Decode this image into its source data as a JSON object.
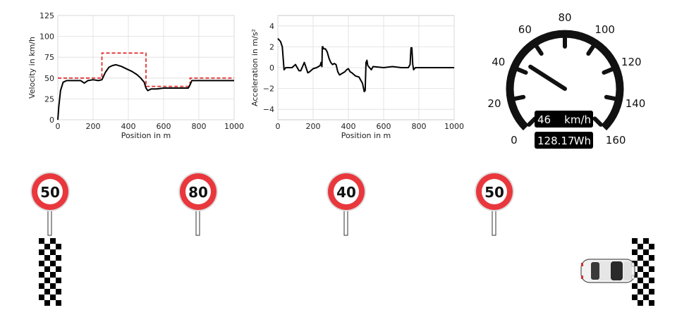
{
  "chart_data": [
    {
      "type": "line",
      "title": "",
      "xlabel": "Position in m",
      "ylabel": "Velocity in km/h",
      "xlim": [
        0,
        1000
      ],
      "ylim": [
        0,
        125
      ],
      "xticks": [
        0,
        200,
        400,
        600,
        800,
        1000
      ],
      "yticks": [
        0,
        25,
        50,
        75,
        100,
        125
      ],
      "grid": true,
      "series": [
        {
          "style": "dashed",
          "color": "#e03030",
          "x": [
            0,
            250,
            250,
            500,
            500,
            750,
            750,
            1000
          ],
          "y": [
            50,
            50,
            80,
            80,
            40,
            40,
            50,
            50
          ]
        },
        {
          "style": "solid",
          "color": "#000000",
          "x": [
            0,
            5,
            15,
            30,
            50,
            100,
            130,
            150,
            170,
            200,
            230,
            250,
            270,
            290,
            310,
            330,
            360,
            390,
            420,
            450,
            470,
            490,
            500,
            510,
            530,
            560,
            600,
            650,
            700,
            740,
            750,
            760,
            800,
            900,
            1000
          ],
          "y": [
            0,
            15,
            35,
            45,
            47,
            47,
            47,
            44,
            47,
            48,
            47,
            48,
            57,
            63,
            65,
            66,
            64,
            61,
            58,
            54,
            50,
            45,
            38,
            35,
            37,
            37,
            38,
            38,
            38,
            38,
            42,
            47,
            47,
            47,
            47
          ]
        }
      ]
    },
    {
      "type": "line",
      "title": "",
      "xlabel": "Position in m",
      "ylabel": "Acceleration in m/s²",
      "xlim": [
        0,
        1000
      ],
      "ylim": [
        -5,
        5
      ],
      "xticks": [
        0,
        200,
        400,
        600,
        800,
        1000
      ],
      "yticks": [
        4,
        2,
        0,
        -2,
        -4
      ],
      "grid": true,
      "series": [
        {
          "style": "solid",
          "color": "#000000",
          "x": [
            0,
            15,
            25,
            35,
            45,
            60,
            80,
            100,
            110,
            120,
            130,
            150,
            160,
            170,
            180,
            200,
            220,
            240,
            245,
            250,
            252,
            255,
            260,
            270,
            280,
            290,
            300,
            310,
            320,
            330,
            340,
            350,
            360,
            370,
            380,
            390,
            400,
            410,
            420,
            440,
            460,
            480,
            490,
            495,
            500,
            505,
            510,
            520,
            530,
            540,
            600,
            650,
            700,
            740,
            750,
            755,
            760,
            765,
            770,
            780,
            800,
            850,
            900,
            1000
          ],
          "y": [
            2.8,
            2.5,
            2.0,
            -0.2,
            0,
            0,
            0,
            0.3,
            0,
            -0.3,
            -0.3,
            0.5,
            0,
            -0.5,
            -0.4,
            -0.1,
            0,
            0.2,
            0.5,
            0.1,
            2.0,
            2.0,
            1.8,
            1.8,
            1.5,
            0.9,
            0.5,
            0.3,
            0.4,
            0.3,
            -0.4,
            -0.7,
            -0.6,
            -0.5,
            -0.4,
            -0.2,
            -0.1,
            -0.4,
            -0.5,
            -0.8,
            -0.9,
            -1.5,
            -2.3,
            -2.2,
            0.5,
            0.7,
            0.2,
            0.0,
            -0.2,
            0.1,
            0,
            0.1,
            0,
            0,
            0.3,
            1.9,
            1.9,
            0.3,
            -0.2,
            0,
            0,
            0,
            0,
            0
          ]
        }
      ]
    }
  ],
  "gauge": {
    "min": 0,
    "max": 160,
    "labels": [
      "0",
      "20",
      "40",
      "60",
      "80",
      "100",
      "120",
      "140",
      "160"
    ],
    "needle_value": 46,
    "speed_value": "46",
    "speed_unit": "km/h",
    "energy_value": "128.17",
    "energy_unit": "Wh"
  },
  "signs": [
    {
      "limit": "50",
      "position_m": 0
    },
    {
      "limit": "80",
      "position_m": 250
    },
    {
      "limit": "40",
      "position_m": 500
    },
    {
      "limit": "50",
      "position_m": 750
    }
  ],
  "track": {
    "start_flag": "checkered-flag-start",
    "finish_flag": "checkered-flag-finish",
    "car_icon": "car-icon",
    "car_progress": 0.93
  },
  "colors": {
    "limit_line": "#e03030",
    "velocity_line": "#000000",
    "sign_ring": "#e8383d",
    "gauge": "#111111"
  }
}
